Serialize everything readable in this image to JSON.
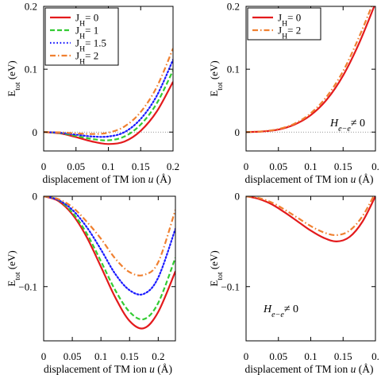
{
  "chart_data": [
    {
      "type": "line",
      "ylabel": "E_tot (eV)",
      "xlabel": "displacement of TM ion u (Å)",
      "xlim": [
        0,
        0.2
      ],
      "ylim": [
        -0.03,
        0.2
      ],
      "xticks": [
        "0",
        "0.05",
        "0.1",
        "0.15",
        "0.2"
      ],
      "yticks": [
        "0",
        "0.1",
        "0.2"
      ],
      "legend": "top-left",
      "reference_line": 0,
      "annotation": "",
      "series": [
        {
          "name": "J_H= 0",
          "color": "#e31a1c",
          "dash": "solid",
          "x": [
            0,
            0.025,
            0.05,
            0.075,
            0.1,
            0.125,
            0.15,
            0.175,
            0.2
          ],
          "y": [
            0,
            -0.002,
            -0.008,
            -0.015,
            -0.019,
            -0.015,
            0.002,
            0.033,
            0.08
          ]
        },
        {
          "name": "J_H= 1",
          "color": "#33cc33",
          "dash": "dashed",
          "x": [
            0,
            0.025,
            0.05,
            0.075,
            0.1,
            0.125,
            0.15,
            0.175,
            0.2
          ],
          "y": [
            0,
            -0.0015,
            -0.006,
            -0.011,
            -0.013,
            -0.007,
            0.012,
            0.046,
            0.098
          ]
        },
        {
          "name": "J_H= 1.5",
          "color": "#1a1aff",
          "dash": "dotted",
          "x": [
            0,
            0.025,
            0.05,
            0.075,
            0.1,
            0.125,
            0.15,
            0.175,
            0.2
          ],
          "y": [
            0,
            -0.001,
            -0.004,
            -0.007,
            -0.007,
            0.0,
            0.021,
            0.058,
            0.115
          ]
        },
        {
          "name": "J_H= 2",
          "color": "#f08030",
          "dash": "dashdot",
          "x": [
            0,
            0.025,
            0.05,
            0.075,
            0.1,
            0.125,
            0.15,
            0.175,
            0.2
          ],
          "y": [
            0,
            -0.0005,
            -0.002,
            -0.003,
            -0.001,
            0.009,
            0.032,
            0.072,
            0.133
          ]
        }
      ]
    },
    {
      "type": "line",
      "ylabel": "E_tot (eV)",
      "xlabel": "displacement of TM ion u (Å)",
      "xlim": [
        0,
        0.2
      ],
      "ylim": [
        -0.03,
        0.2
      ],
      "xticks": [
        "0",
        "0.05",
        "0.1",
        "0.15",
        "0."
      ],
      "yticks": [
        "0",
        "0.1",
        "0.2"
      ],
      "legend": "top-left",
      "reference_line": 0,
      "annotation": "H_{e−e}≠ 0",
      "series": [
        {
          "name": "J_H= 0",
          "color": "#e31a1c",
          "dash": "solid",
          "x": [
            0,
            0.025,
            0.05,
            0.075,
            0.1,
            0.125,
            0.15,
            0.175,
            0.2
          ],
          "y": [
            0,
            0.001,
            0.004,
            0.012,
            0.027,
            0.052,
            0.09,
            0.142,
            0.205
          ]
        },
        {
          "name": "J_H= 2",
          "color": "#f08030",
          "dash": "dashdot",
          "x": [
            0,
            0.025,
            0.05,
            0.075,
            0.1,
            0.125,
            0.15,
            0.175,
            0.2
          ],
          "y": [
            0,
            0.0012,
            0.0048,
            0.0135,
            0.03,
            0.057,
            0.097,
            0.152,
            0.215
          ]
        }
      ]
    },
    {
      "type": "line",
      "ylabel": "E_tot (eV)",
      "xlabel": "displacement of TM ion u (Å)",
      "xlim": [
        0,
        0.23
      ],
      "ylim": [
        -0.16,
        0
      ],
      "xticks": [
        "0",
        "0.05",
        "0.1",
        "0.15",
        "0.2"
      ],
      "yticks": [
        "0",
        "-0.1"
      ],
      "legend": "",
      "reference_line": null,
      "annotation": "",
      "series": [
        {
          "name": "J_H= 0",
          "color": "#e31a1c",
          "dash": "solid",
          "x": [
            0,
            0.025,
            0.05,
            0.075,
            0.1,
            0.125,
            0.15,
            0.175,
            0.2,
            0.23
          ],
          "y": [
            0,
            -0.005,
            -0.02,
            -0.045,
            -0.078,
            -0.112,
            -0.138,
            -0.146,
            -0.128,
            -0.083
          ]
        },
        {
          "name": "J_H= 1",
          "color": "#33cc33",
          "dash": "dashed",
          "x": [
            0,
            0.025,
            0.05,
            0.075,
            0.1,
            0.125,
            0.15,
            0.175,
            0.2,
            0.23
          ],
          "y": [
            0,
            -0.004,
            -0.018,
            -0.041,
            -0.072,
            -0.104,
            -0.128,
            -0.136,
            -0.118,
            -0.068
          ]
        },
        {
          "name": "J_H= 1.5",
          "color": "#1a1aff",
          "dash": "dotted",
          "x": [
            0,
            0.025,
            0.05,
            0.075,
            0.1,
            0.125,
            0.15,
            0.175,
            0.2,
            0.23
          ],
          "y": [
            0,
            -0.004,
            -0.015,
            -0.034,
            -0.059,
            -0.086,
            -0.104,
            -0.108,
            -0.09,
            -0.036
          ]
        },
        {
          "name": "J_H= 2",
          "color": "#f08030",
          "dash": "dashdot",
          "x": [
            0,
            0.025,
            0.05,
            0.075,
            0.1,
            0.125,
            0.15,
            0.175,
            0.2,
            0.23
          ],
          "y": [
            0,
            -0.003,
            -0.012,
            -0.028,
            -0.047,
            -0.069,
            -0.084,
            -0.087,
            -0.073,
            -0.015
          ]
        }
      ]
    },
    {
      "type": "line",
      "ylabel": "E_tot (eV)",
      "xlabel": "displacement of TM ion u (Å)",
      "xlim": [
        0,
        0.2
      ],
      "ylim": [
        -0.16,
        0
      ],
      "xticks": [
        "0",
        "0.05",
        "0.1",
        "0.15",
        "0."
      ],
      "yticks": [
        "0",
        "-0.1"
      ],
      "legend": "",
      "reference_line": null,
      "annotation": "H_{e−e}≠ 0",
      "series": [
        {
          "name": "J_H= 0",
          "color": "#e31a1c",
          "dash": "solid",
          "x": [
            0,
            0.02,
            0.04,
            0.06,
            0.08,
            0.1,
            0.12,
            0.14,
            0.16,
            0.18,
            0.2
          ],
          "y": [
            0,
            -0.003,
            -0.009,
            -0.018,
            -0.028,
            -0.038,
            -0.046,
            -0.05,
            -0.045,
            -0.028,
            0.0
          ]
        },
        {
          "name": "J_H= 2",
          "color": "#f08030",
          "dash": "dashdot",
          "x": [
            0,
            0.02,
            0.04,
            0.06,
            0.08,
            0.1,
            0.12,
            0.14,
            0.16,
            0.18,
            0.2
          ],
          "y": [
            0,
            -0.002,
            -0.007,
            -0.015,
            -0.024,
            -0.033,
            -0.04,
            -0.043,
            -0.038,
            -0.022,
            0.004
          ]
        }
      ]
    }
  ]
}
